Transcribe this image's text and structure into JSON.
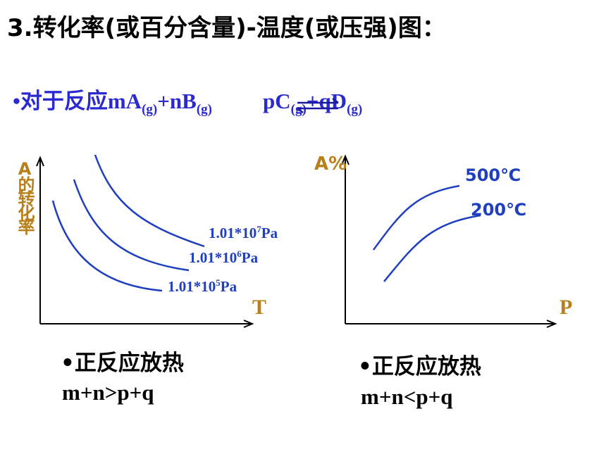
{
  "title": "3.转化率(或百分含量)-温度(或压强)图：",
  "reaction": {
    "lead": "•对于反应mA",
    "a_state": "(g)",
    "b": "+nB",
    "b_state": "(g)",
    "c": "pC",
    "c_state": "(g)",
    "d": "+qD",
    "d_state": "(g)"
  },
  "left_chart": {
    "y_label": "A的转化率",
    "x_label": "T",
    "curve_labels": [
      {
        "base": "1.01*10",
        "exponent": "7",
        "unit": "Pa"
      },
      {
        "base": "1.01*10",
        "exponent": "6",
        "unit": "Pa"
      },
      {
        "base": "1.01*10",
        "exponent": "5",
        "unit": "Pa"
      }
    ],
    "caption": "•正反应放热",
    "relation": "m+n>p+q"
  },
  "right_chart": {
    "y_label": "A%",
    "x_label": "P",
    "curve_labels": [
      "500℃",
      "200℃"
    ],
    "caption": "•正反应放热",
    "relation": "m+n<p+q"
  }
}
